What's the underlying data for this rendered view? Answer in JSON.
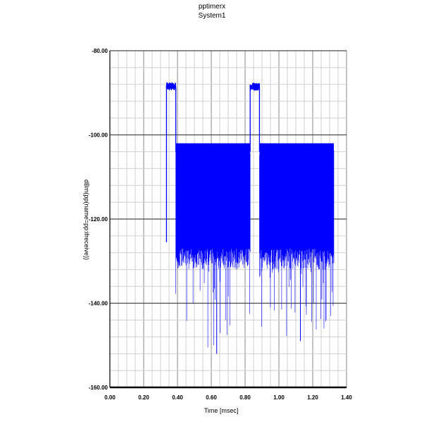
{
  "chart_data": {
    "type": "line",
    "title": "pptimerx",
    "subtitle": "System1",
    "xlabel": "Time [msec]",
    "ylabel": "dBm(pp(name=pp:ifreceive))",
    "xlim": [
      0.0,
      1.4
    ],
    "ylim": [
      -160.0,
      -80.0
    ],
    "x_ticks": [
      "0.00",
      "0.20",
      "0.40",
      "0.60",
      "0.80",
      "1.00",
      "1.20",
      "1.40"
    ],
    "y_ticks": [
      "-80.00",
      "-100.00",
      "-120.00",
      "-140.00",
      "-160.00"
    ],
    "grid": true,
    "line_color": "#0000ff",
    "series": [
      {
        "segments": [
          {
            "kind": "pulse",
            "x_start": 0.335,
            "x_end": 0.39,
            "level": -88.5,
            "ripple": 1.0
          },
          {
            "kind": "noise",
            "x_start": 0.39,
            "x_end": 0.83,
            "upper": -103.5,
            "mean": -115.5,
            "lower_dense": -127.0,
            "deep_min": -152.0
          },
          {
            "kind": "pulse",
            "x_start": 0.83,
            "x_end": 0.885,
            "level": -88.5,
            "ripple": 1.0
          },
          {
            "kind": "noise",
            "x_start": 0.885,
            "x_end": 1.325,
            "upper": -103.5,
            "mean": -115.5,
            "lower_dense": -127.0,
            "deep_min": -149.0
          }
        ],
        "pulse_edges": [
          {
            "x": 0.335,
            "from": -125.5,
            "to": -88.5
          },
          {
            "x": 0.39,
            "from": -88.5,
            "to": -104.0
          },
          {
            "x": 0.83,
            "from": -104.0,
            "to": -88.5
          },
          {
            "x": 0.885,
            "from": -88.5,
            "to": -104.0
          }
        ]
      }
    ]
  }
}
